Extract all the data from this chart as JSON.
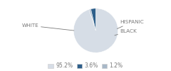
{
  "labels_order": [
    "WHITE",
    "HISPANIC",
    "BLACK"
  ],
  "values": [
    95.2,
    1.2,
    3.6
  ],
  "colors": [
    "#d6dde6",
    "#a8b8c8",
    "#2e5f8a"
  ],
  "legend_labels": [
    "95.2%",
    "3.6%",
    "1.2%"
  ],
  "legend_colors": [
    "#d6dde6",
    "#2e5f8a",
    "#a8b8c8"
  ],
  "background_color": "#ffffff",
  "text_color": "#7a7a7a",
  "startangle": 90,
  "label_fontsize": 5.2,
  "legend_fontsize": 5.5
}
